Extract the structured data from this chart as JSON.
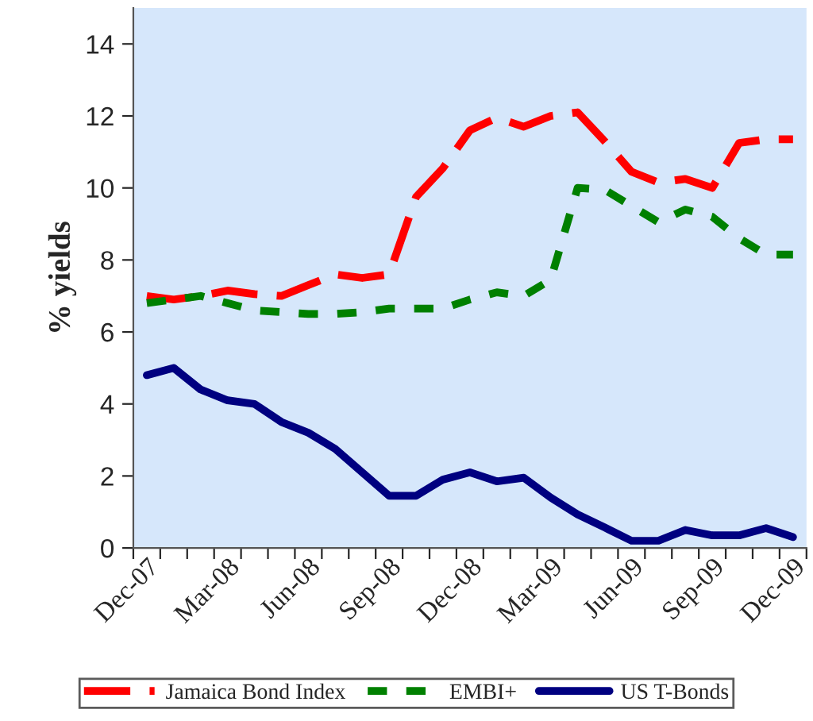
{
  "chart_data": {
    "type": "line",
    "ylabel": "% yields",
    "categories": [
      "Dec-07",
      null,
      null,
      "Mar-08",
      null,
      null,
      "Jun-08",
      null,
      null,
      "Sep-08",
      null,
      null,
      "Dec-08",
      null,
      null,
      "Mar-09",
      null,
      null,
      "Jun-09",
      null,
      null,
      "Sep-09",
      null,
      null,
      "Dec-09"
    ],
    "series": [
      {
        "name": "Jamaica Bond Index",
        "color": "#ff0000",
        "line_style": "dashed",
        "values": [
          7.0,
          6.9,
          7.0,
          7.15,
          7.05,
          7.0,
          7.3,
          7.6,
          7.5,
          7.6,
          9.75,
          10.55,
          11.6,
          11.95,
          11.7,
          12.0,
          12.1,
          11.3,
          10.45,
          10.15,
          10.25,
          10.0,
          11.25,
          11.35,
          11.35
        ]
      },
      {
        "name": "EMBI+",
        "color": "#008000",
        "line_style": "dotted",
        "values": [
          6.8,
          6.9,
          7.0,
          6.8,
          6.6,
          6.55,
          6.5,
          6.5,
          6.55,
          6.65,
          6.65,
          6.65,
          6.9,
          7.1,
          7.0,
          7.45,
          10.0,
          9.95,
          9.5,
          9.05,
          9.4,
          9.2,
          8.6,
          8.15,
          8.15
        ]
      },
      {
        "name": "US T-Bonds",
        "color": "#000080",
        "line_style": "solid",
        "values": [
          4.8,
          5.0,
          4.4,
          4.1,
          4.0,
          3.5,
          3.2,
          2.75,
          2.1,
          1.45,
          1.45,
          1.9,
          2.1,
          1.85,
          1.95,
          1.4,
          0.93,
          0.57,
          0.2,
          0.2,
          0.5,
          0.35,
          0.35,
          0.55,
          0.3
        ]
      }
    ],
    "ylim": [
      0,
      15
    ],
    "yticks": [
      0,
      2,
      4,
      6,
      8,
      10,
      12,
      14
    ],
    "grid": false,
    "legend": "bottom"
  }
}
